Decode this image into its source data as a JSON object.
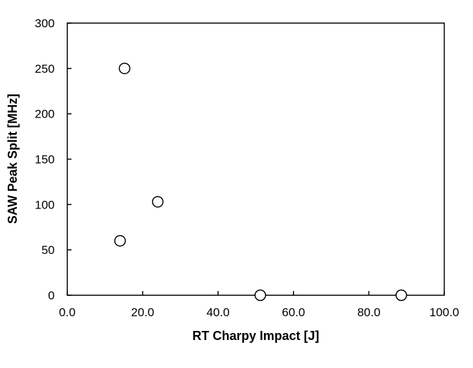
{
  "chart_data": {
    "type": "scatter",
    "title": "",
    "xlabel": "RT Charpy Impact [J]",
    "ylabel": "SAW Peak Split [MHz]",
    "xlim": [
      0,
      100
    ],
    "ylim": [
      0,
      300
    ],
    "x_ticks": [
      0,
      20,
      40,
      60,
      80,
      100
    ],
    "x_tick_labels": [
      "0.0",
      "20.0",
      "40.0",
      "60.0",
      "80.0",
      "100.0"
    ],
    "y_ticks": [
      0,
      50,
      100,
      150,
      200,
      250,
      300
    ],
    "y_tick_labels": [
      "0",
      "50",
      "100",
      "150",
      "200",
      "250",
      "300"
    ],
    "grid": false,
    "legend": "none",
    "marker": "open-circle",
    "series": [
      {
        "points": [
          {
            "x": 15.2,
            "y": 250
          },
          {
            "x": 24.0,
            "y": 103
          },
          {
            "x": 14.0,
            "y": 60
          },
          {
            "x": 51.2,
            "y": 0
          },
          {
            "x": 88.6,
            "y": 0
          }
        ]
      }
    ]
  }
}
